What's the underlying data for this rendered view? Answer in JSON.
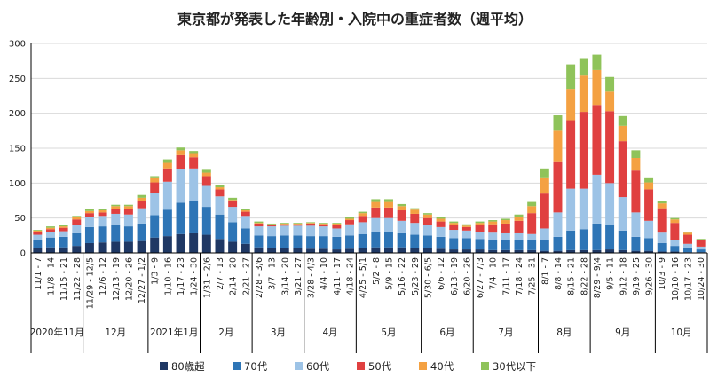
{
  "chart_data": {
    "type": "bar",
    "stacked": true,
    "title": "東京都が発表した年齢別・入院中の重症者数（週平均）",
    "ylim": [
      0,
      300
    ],
    "yticks": [
      0,
      50,
      100,
      150,
      200,
      250,
      300
    ],
    "categories": [
      "11/1 - 7",
      "11/8 - 14",
      "11/15 - 21",
      "11/22 - 28",
      "11/29 - 12/5",
      "12/6 - 12",
      "12/13 - 19",
      "12/20 - 26",
      "12/27 - 1/2",
      "1/3 - 9",
      "1/10 - 16",
      "1/17 - 23",
      "1/24 - 30",
      "1/31 - 2/6",
      "2/7 - 13",
      "2/14 - 20",
      "2/21 - 27",
      "2/28 - 3/6",
      "3/7 - 13",
      "3/14 - 20",
      "3/21 - 27",
      "3/28 - 4/3",
      "4/4 - 10",
      "4/11 - 17",
      "4/18 - 24",
      "4/25 - 5/1",
      "5/2 - 8",
      "5/9 - 15",
      "5/16 - 22",
      "5/23 - 29",
      "5/30 - 6/5",
      "6/6 - 12",
      "6/13 - 19",
      "6/20 - 26",
      "6/27 - 7/3",
      "7/4 - 10",
      "7/11 - 17",
      "7/18 - 24",
      "7/25 - 31",
      "8/1 - 7",
      "8/8 - 14",
      "8/15 - 21",
      "8/22 - 28",
      "8/29 - 9/4",
      "9/5 - 11",
      "9/12 - 18",
      "9/19 - 25",
      "9/26 - 30",
      "10/3 - 9",
      "10/10 - 16",
      "10/17 - 23",
      "10/24 - 30"
    ],
    "series": [
      {
        "name": "80歳超",
        "color": "#1f3864",
        "values": [
          7,
          8,
          8,
          10,
          14,
          15,
          16,
          16,
          17,
          22,
          24,
          27,
          28,
          26,
          20,
          16,
          13,
          8,
          7,
          7,
          7,
          6,
          6,
          5,
          6,
          7,
          8,
          8,
          8,
          7,
          7,
          6,
          5,
          5,
          5,
          4,
          4,
          4,
          4,
          3,
          3,
          4,
          4,
          4,
          5,
          4,
          3,
          3,
          2,
          2,
          1,
          1
        ]
      },
      {
        "name": "70代",
        "color": "#2e75b6",
        "values": [
          12,
          14,
          15,
          18,
          23,
          23,
          24,
          22,
          25,
          32,
          38,
          45,
          46,
          40,
          35,
          28,
          22,
          17,
          17,
          18,
          18,
          18,
          18,
          18,
          19,
          20,
          22,
          22,
          20,
          19,
          18,
          17,
          16,
          16,
          15,
          15,
          14,
          15,
          14,
          16,
          20,
          28,
          30,
          38,
          35,
          28,
          20,
          18,
          12,
          8,
          6,
          4
        ]
      },
      {
        "name": "60代",
        "color": "#9dc3e6",
        "values": [
          7,
          8,
          8,
          12,
          14,
          15,
          16,
          17,
          22,
          32,
          40,
          48,
          47,
          30,
          26,
          22,
          18,
          13,
          14,
          14,
          14,
          15,
          14,
          12,
          16,
          17,
          20,
          20,
          18,
          17,
          15,
          14,
          12,
          11,
          10,
          10,
          10,
          9,
          9,
          16,
          35,
          60,
          58,
          70,
          60,
          48,
          35,
          25,
          15,
          8,
          6,
          4
        ]
      },
      {
        "name": "50代",
        "color": "#e04040",
        "values": [
          4,
          4,
          5,
          8,
          6,
          5,
          7,
          8,
          10,
          15,
          19,
          20,
          16,
          14,
          10,
          8,
          6,
          4,
          2,
          2,
          2,
          3,
          3,
          5,
          6,
          9,
          15,
          15,
          15,
          13,
          10,
          8,
          7,
          5,
          10,
          12,
          14,
          18,
          30,
          50,
          72,
          98,
          110,
          100,
          103,
          80,
          60,
          45,
          35,
          25,
          13,
          9
        ]
      },
      {
        "name": "40代",
        "color": "#f4a142",
        "values": [
          2,
          2,
          2,
          3,
          3,
          3,
          4,
          4,
          5,
          6,
          8,
          7,
          6,
          5,
          3,
          2,
          2,
          1,
          1,
          1,
          1,
          1,
          1,
          2,
          2,
          4,
          8,
          8,
          6,
          6,
          5,
          4,
          3,
          2,
          3,
          4,
          5,
          6,
          10,
          22,
          45,
          45,
          52,
          50,
          28,
          22,
          18,
          10,
          7,
          5,
          3,
          1
        ]
      },
      {
        "name": "30代以下",
        "color": "#8fc35a",
        "values": [
          1,
          2,
          2,
          2,
          3,
          2,
          2,
          2,
          4,
          3,
          5,
          4,
          3,
          4,
          3,
          3,
          2,
          2,
          1,
          1,
          1,
          1,
          1,
          1,
          2,
          2,
          4,
          4,
          3,
          2,
          2,
          2,
          2,
          2,
          2,
          2,
          2,
          3,
          6,
          14,
          22,
          35,
          25,
          22,
          21,
          14,
          11,
          6,
          4,
          2,
          1,
          1
        ]
      }
    ],
    "month_groups": [
      {
        "label": "2020年11月",
        "start": 0,
        "end": 3
      },
      {
        "label": "12月",
        "start": 4,
        "end": 8
      },
      {
        "label": "2021年1月",
        "start": 9,
        "end": 12
      },
      {
        "label": "2月",
        "start": 13,
        "end": 16
      },
      {
        "label": "3月",
        "start": 17,
        "end": 20
      },
      {
        "label": "4月",
        "start": 21,
        "end": 24
      },
      {
        "label": "5月",
        "start": 25,
        "end": 29
      },
      {
        "label": "6月",
        "start": 30,
        "end": 33
      },
      {
        "label": "7月",
        "start": 34,
        "end": 38
      },
      {
        "label": "8月",
        "start": 39,
        "end": 42
      },
      {
        "label": "9月",
        "start": 43,
        "end": 47
      },
      {
        "label": "10月",
        "start": 48,
        "end": 51
      }
    ],
    "legend_position": "bottom",
    "grid": true
  }
}
